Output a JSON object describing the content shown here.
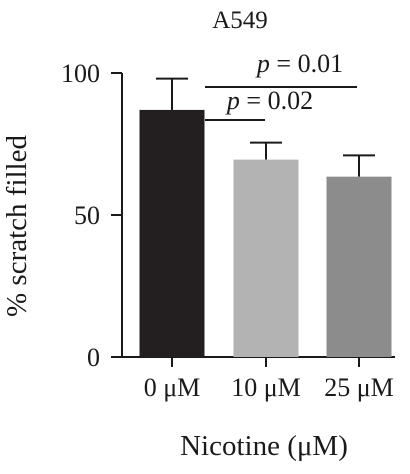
{
  "chart_data": {
    "type": "bar",
    "title": "A549",
    "xlabel": "Nicotine (μM)",
    "ylabel": "% scratch filled",
    "categories": [
      "0 μM",
      "10 μM",
      "25 μM"
    ],
    "values": [
      87,
      69.5,
      63.5
    ],
    "errors": [
      11,
      6,
      7.5
    ],
    "bar_colors": [
      "#231f20",
      "#b3b3b3",
      "#8c8c8c"
    ],
    "ylim": [
      0,
      100
    ],
    "yticks": [
      0,
      50,
      100
    ],
    "grid": false,
    "annotations": [
      {
        "text": "p = 0.01",
        "from": 0,
        "to": 2
      },
      {
        "text": "p = 0.02",
        "from": 0,
        "to": 1
      }
    ]
  }
}
